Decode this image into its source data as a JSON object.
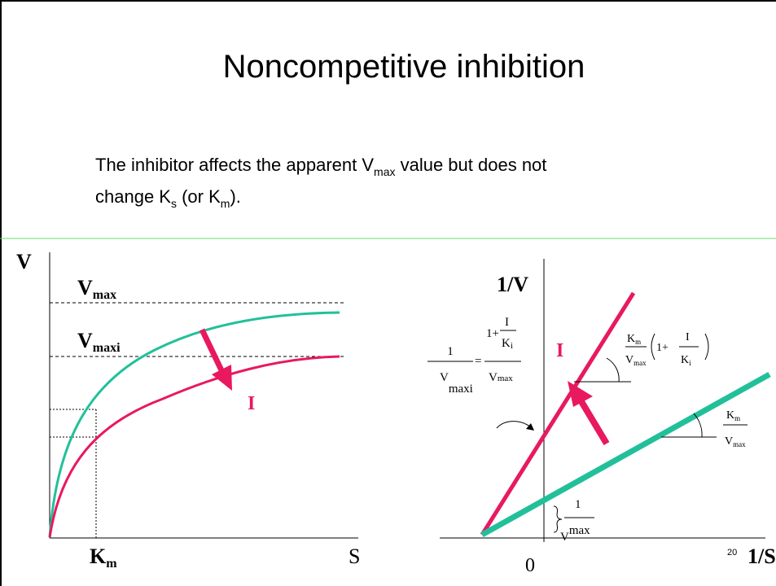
{
  "title": "Noncompetitive inhibition",
  "body": {
    "line1": [
      "The  inhibitor affects the apparent V",
      "max",
      " value but does not"
    ],
    "line2": [
      "change K",
      "s",
      " (or K",
      "m",
      ")."
    ]
  },
  "left_plot": {
    "y_label": "V",
    "x_label": "S",
    "inhibitor": "I",
    "vmax": [
      "V",
      "max"
    ],
    "vmaxi": [
      "V",
      "maxi"
    ],
    "km": [
      "K",
      "m"
    ]
  },
  "right_plot": {
    "y_label": "1/V",
    "x_label": "1/S",
    "origin": "0",
    "inhibitor": "I",
    "intercept_i": [
      "1",
      "V",
      "maxi",
      "=",
      "1+",
      "I",
      "K",
      "i",
      "V",
      "max"
    ],
    "slope_i": [
      "K",
      "m",
      "V",
      "max",
      "1+",
      "I",
      "K",
      "i"
    ],
    "slope": [
      "K",
      "m",
      "V",
      "max"
    ],
    "intercept": [
      "1",
      "V",
      "max"
    ]
  },
  "slide_number": "20"
}
